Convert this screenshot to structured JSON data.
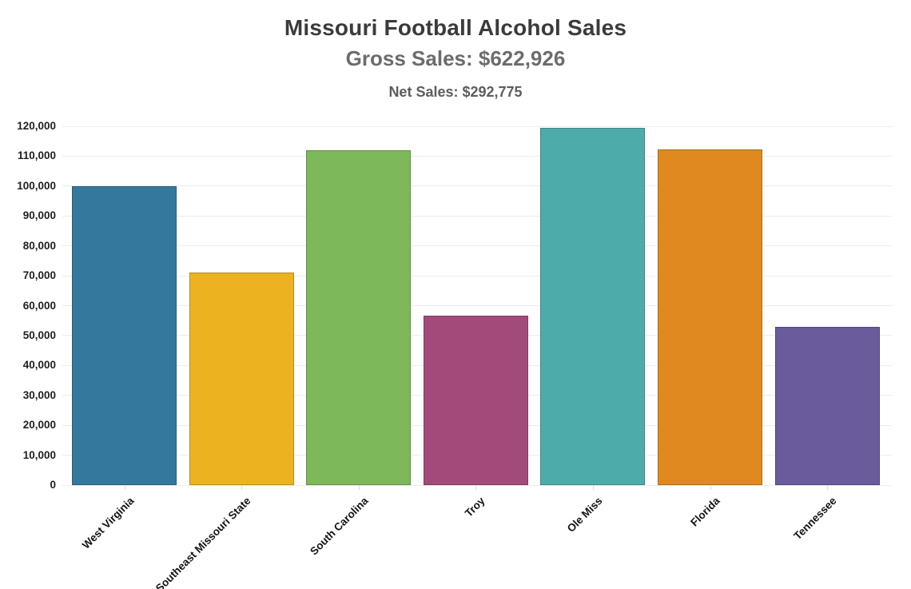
{
  "header": {
    "title": "Missouri Football Alcohol Sales",
    "gross_sales": "Gross Sales: $622,926",
    "net_sales": "Net Sales: $292,775"
  },
  "chart_data": {
    "type": "bar",
    "title": "Missouri Football Alcohol Sales",
    "subtitle": "Gross Sales: $622,926",
    "subtitle2": "Net Sales: $292,775",
    "categories": [
      "West Virginia",
      "Southeast Missouri State",
      "South Carolina",
      "Troy",
      "Ole Miss",
      "Florida",
      "Tennessee"
    ],
    "values": [
      100000,
      71000,
      112000,
      56600,
      119500,
      112200,
      52800
    ],
    "bar_colors": [
      "#35789E",
      "#EBB320",
      "#7DB85B",
      "#A24B7A",
      "#4DACA9",
      "#DF891E",
      "#6A5B9D"
    ],
    "xlabel": "",
    "ylabel": "",
    "ylim": [
      0,
      120000
    ],
    "ytick_values": [
      0,
      10000,
      20000,
      30000,
      40000,
      50000,
      60000,
      70000,
      80000,
      90000,
      100000,
      110000,
      120000
    ],
    "ytick_labels": [
      "0",
      "10,000",
      "20,000",
      "30,000",
      "40,000",
      "50,000",
      "60,000",
      "70,000",
      "80,000",
      "90,000",
      "100,000",
      "110,000",
      "120,000"
    ],
    "grid": true,
    "legend": false,
    "gridline_color": "#ececec",
    "axis_text_color": "#1f1f1f"
  }
}
